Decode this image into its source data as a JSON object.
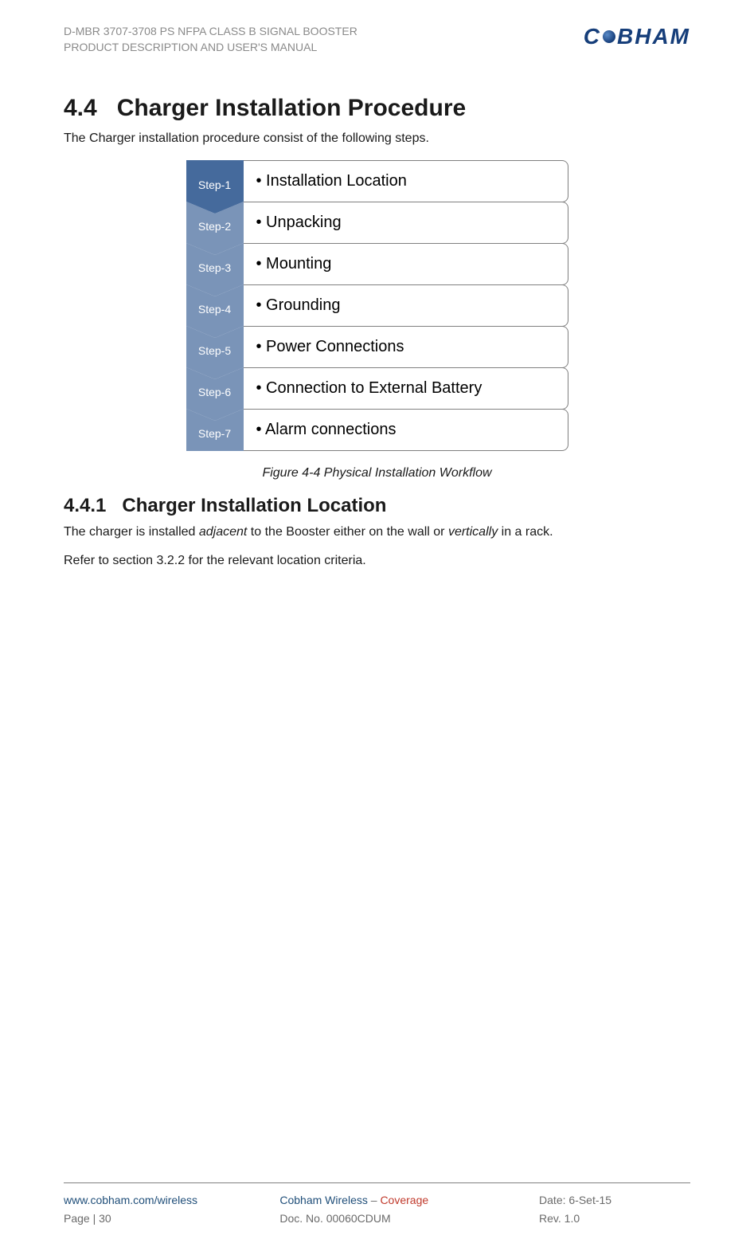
{
  "header": {
    "line1": "D-MBR 3707-3708 PS NFPA CLASS B SIGNAL BOOSTER",
    "line2": "PRODUCT DESCRIPTION AND USER'S MANUAL",
    "brand_pre": "C",
    "brand_post": "BHAM"
  },
  "section": {
    "number": "4.4",
    "title": "Charger Installation Procedure",
    "intro": "The Charger installation procedure consist of the following steps."
  },
  "workflow": {
    "steps": [
      {
        "badge": "Step-1",
        "label": "Installation Location",
        "faded": false
      },
      {
        "badge": "Step-2",
        "label": "Unpacking",
        "faded": true
      },
      {
        "badge": "Step-3",
        "label": "Mounting",
        "faded": true
      },
      {
        "badge": "Step-4",
        "label": "Grounding",
        "faded": true
      },
      {
        "badge": "Step-5",
        "label": "Power Connections",
        "faded": true
      },
      {
        "badge": "Step-6",
        "label": "Connection to External Battery",
        "faded": true
      },
      {
        "badge": "Step-7",
        "label": "Alarm connections",
        "faded": true
      }
    ],
    "caption": "Figure 4-4  Physical Installation Workflow"
  },
  "subsection": {
    "number": "4.4.1",
    "title": "Charger Installation Location",
    "p1_pre": "The charger is installed ",
    "p1_adj": "adjacent",
    "p1_mid": " to the Booster either on the wall or ",
    "p1_vert": "vertically",
    "p1_post": " in a rack.",
    "p2": "Refer to section 3.2.2 for the relevant location criteria."
  },
  "footer": {
    "url": "www.cobham.com/wireless",
    "page": "Page | 30",
    "center1_pre": "Cobham Wireless",
    "center1_sep": " – ",
    "center1_cov": "Coverage",
    "center2": "Doc. No. 00060CDUM",
    "date": "Date: 6-Set-15",
    "rev": "Rev. 1.0"
  },
  "colors": {
    "badge_primary": "#456a9c",
    "badge_faded": "#7a94b8",
    "brand": "#163e7a",
    "coverage": "#c0392b",
    "header_text": "#8a8a8a",
    "footer_text": "#6a6a6a"
  }
}
